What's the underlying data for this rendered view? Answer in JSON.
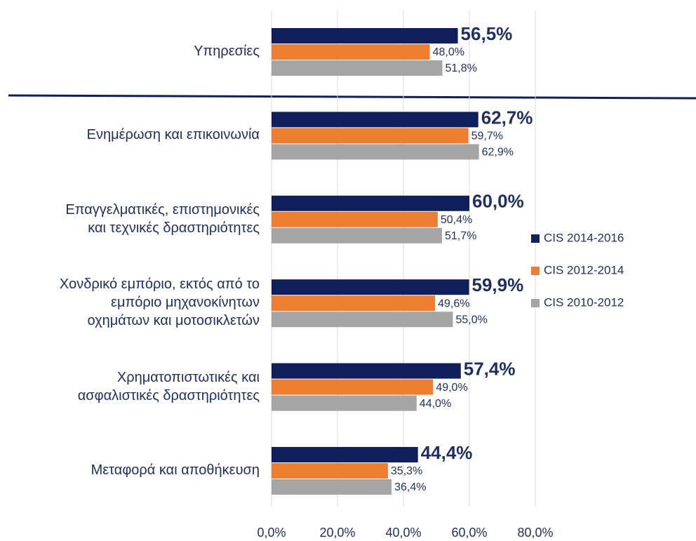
{
  "chart_data": {
    "type": "barh",
    "categories": [
      "Υπηρεσίες",
      "Ενημέρωση και επικοινωνία",
      "Επαγγελματικές, επιστημονικές\nκαι τεχνικές δραστηριότητες",
      "Χονδρικό εμπόριο, εκτός από το\nεμπόριο μηχανοκίνητων\nοχημάτων και μοτοσικλετών",
      "Χρηματοπιστωτικές και\nασφαλιστικές δραστηριότητες",
      "Μεταφορά και αποθήκευση"
    ],
    "series": [
      {
        "name": "CIS 2014-2016",
        "color": "#0e1f5b",
        "values": [
          56.5,
          62.7,
          60.0,
          59.9,
          57.4,
          44.4
        ],
        "value_labels": [
          "56,5%",
          "62,7%",
          "60,0%",
          "59,9%",
          "57,4%",
          "44,4%"
        ]
      },
      {
        "name": "CIS 2012-2014",
        "color": "#ed7d31",
        "values": [
          48.0,
          59.7,
          50.4,
          49.6,
          49.0,
          35.3
        ],
        "value_labels": [
          "48,0%",
          "59,7%",
          "50,4%",
          "49,6%",
          "49,0%",
          "35,3%"
        ]
      },
      {
        "name": "CIS 2010-2012",
        "color": "#a5a5a5",
        "values": [
          51.8,
          62.9,
          51.7,
          55.0,
          44.0,
          36.4
        ],
        "value_labels": [
          "51,8%",
          "62,9%",
          "51,7%",
          "55,0%",
          "44,0%",
          "36,4%"
        ]
      }
    ],
    "xlim": [
      0,
      80
    ],
    "xticks": [
      {
        "value": 0,
        "label": "0,0%"
      },
      {
        "value": 20,
        "label": "20,0%"
      },
      {
        "value": 40,
        "label": "40,0%"
      },
      {
        "value": 60,
        "label": "60,0%"
      },
      {
        "value": 80,
        "label": "80,0%"
      }
    ],
    "grid": true,
    "legend": "right"
  }
}
